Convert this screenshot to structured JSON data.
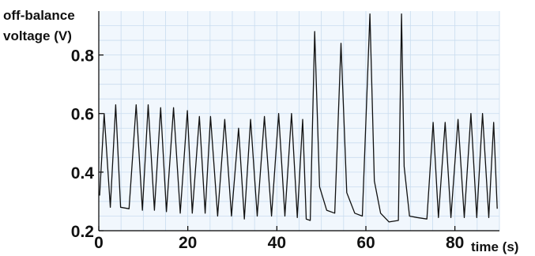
{
  "chart_data": {
    "type": "line",
    "title": "",
    "ylabel_line1": "off-balance",
    "ylabel_line2": "voltage (V)",
    "xlabel": "time (s)",
    "xlim": [
      0,
      90
    ],
    "ylim": [
      0.2,
      0.95
    ],
    "xticks": [
      0,
      20,
      40,
      60,
      80
    ],
    "yticks": [
      0.2,
      0.4,
      0.6,
      0.8
    ],
    "grid": true,
    "colors": {
      "line": "#111111",
      "plot_bg": "#f1f7fd",
      "grid": "#c9dcef",
      "axis": "#000000"
    },
    "series": [
      {
        "x": [
          0.2,
          1.2,
          2.6,
          3.8,
          4.9,
          6.8,
          8.4,
          9.8,
          11.1,
          12.5,
          13.9,
          15.2,
          16.8,
          18.3,
          19.9,
          21.0,
          22.6,
          23.9,
          25.1,
          26.7,
          28.3,
          29.8,
          31.4,
          32.7,
          34.1,
          35.6,
          37.2,
          38.8,
          40.4,
          41.8,
          43.3,
          44.6,
          45.8,
          46.6,
          47.5,
          48.5,
          49.6,
          51.2,
          53.0,
          54.4,
          55.7,
          57.5,
          59.2,
          60.9,
          61.9,
          63.3,
          65.2,
          67.3,
          68.0,
          68.6,
          69.8,
          71.5,
          73.7,
          75.1,
          76.3,
          77.8,
          79.1,
          80.7,
          82.1,
          83.6,
          84.9,
          86.2,
          87.6,
          88.7,
          89.5
        ],
        "y": [
          0.32,
          0.6,
          0.28,
          0.63,
          0.28,
          0.275,
          0.63,
          0.27,
          0.63,
          0.27,
          0.62,
          0.265,
          0.62,
          0.26,
          0.61,
          0.26,
          0.59,
          0.26,
          0.59,
          0.25,
          0.58,
          0.25,
          0.55,
          0.24,
          0.58,
          0.25,
          0.59,
          0.25,
          0.6,
          0.25,
          0.6,
          0.245,
          0.58,
          0.24,
          0.235,
          0.88,
          0.35,
          0.27,
          0.26,
          0.84,
          0.33,
          0.26,
          0.25,
          0.94,
          0.37,
          0.26,
          0.23,
          0.235,
          0.94,
          0.42,
          0.25,
          0.245,
          0.24,
          0.57,
          0.245,
          0.57,
          0.245,
          0.58,
          0.245,
          0.6,
          0.245,
          0.6,
          0.245,
          0.57,
          0.275
        ]
      }
    ]
  }
}
